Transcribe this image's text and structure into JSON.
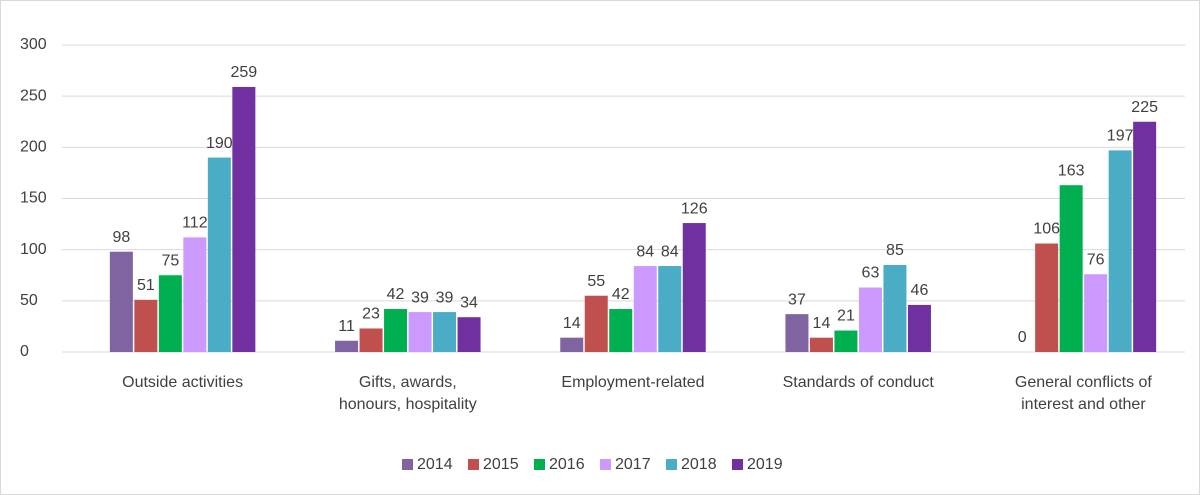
{
  "chart_data": {
    "type": "bar",
    "categories": [
      "Outside activities",
      "Gifts, awards,\nhonours, hospitality",
      "Employment-related",
      "Standards of conduct",
      "General conflicts of\ninterest and other"
    ],
    "series": [
      {
        "name": "2014",
        "color": "#8064a2",
        "values": [
          98,
          11,
          14,
          37,
          0
        ]
      },
      {
        "name": "2015",
        "color": "#c0504d",
        "values": [
          51,
          23,
          55,
          14,
          106
        ]
      },
      {
        "name": "2016",
        "color": "#00b050",
        "values": [
          75,
          42,
          42,
          21,
          163
        ]
      },
      {
        "name": "2017",
        "color": "#cc99ff",
        "values": [
          112,
          39,
          84,
          63,
          76
        ]
      },
      {
        "name": "2018",
        "color": "#4bacc6",
        "values": [
          190,
          39,
          84,
          85,
          197
        ]
      },
      {
        "name": "2019",
        "color": "#7030a0",
        "values": [
          259,
          34,
          126,
          46,
          225
        ]
      }
    ],
    "ylim": [
      0,
      300
    ],
    "yticks": [
      0,
      50,
      100,
      150,
      200,
      250,
      300
    ],
    "grid": true,
    "legend": "bottom"
  }
}
